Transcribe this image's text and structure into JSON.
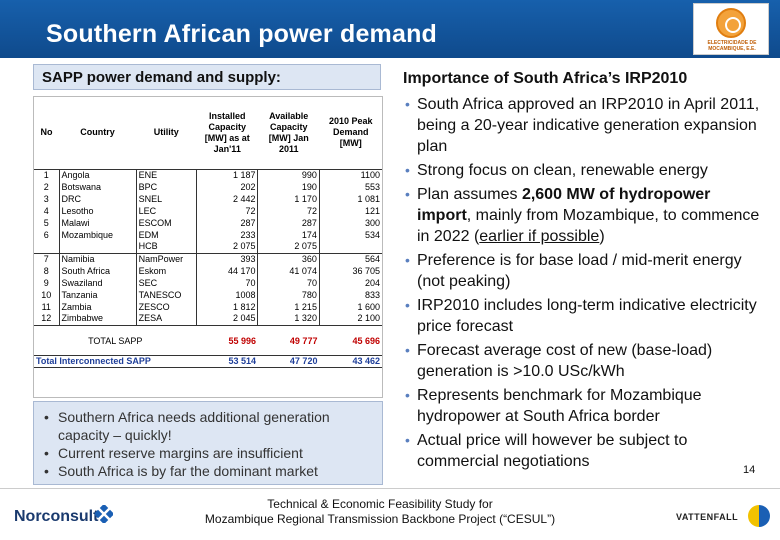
{
  "header": {
    "title": "Southern African power demand",
    "logo_text": "ELECTRICIDADE DE MOCAMBIQUE, E.E."
  },
  "left": {
    "heading": "SAPP power demand and supply:",
    "table": {
      "headers": [
        "No",
        "Country",
        "Utility",
        "Installed Capacity [MW] as at Jan'11",
        "Available Capacity [MW] Jan 2011",
        "2010 Peak Demand [MW]"
      ],
      "rows": [
        [
          "1",
          "Angola",
          "ENE",
          "1 187",
          "990",
          "1100"
        ],
        [
          "2",
          "Botswana",
          "BPC",
          "202",
          "190",
          "553"
        ],
        [
          "3",
          "DRC",
          "SNEL",
          "2 442",
          "1 170",
          "1 081"
        ],
        [
          "4",
          "Lesotho",
          "LEC",
          "72",
          "72",
          "121"
        ],
        [
          "5",
          "Malawi",
          "ESCOM",
          "287",
          "287",
          "300"
        ],
        [
          "6",
          "Mozambique",
          "EDM",
          "233",
          "174",
          "534"
        ],
        [
          "",
          "",
          "HCB",
          "2 075",
          "2 075",
          ""
        ],
        [
          "7",
          "Namibia",
          "NamPower",
          "393",
          "360",
          "564"
        ],
        [
          "8",
          "South Africa",
          "Eskom",
          "44 170",
          "41 074",
          "36 705"
        ],
        [
          "9",
          "Swaziland",
          "SEC",
          "70",
          "70",
          "204"
        ],
        [
          "10",
          "Tanzania",
          "TANESCO",
          "1008",
          "780",
          "833"
        ],
        [
          "11",
          "Zambia",
          "ZESCO",
          "1 812",
          "1 215",
          "1 600"
        ],
        [
          "12",
          "Zimbabwe",
          "ZESA",
          "2 045",
          "1 320",
          "2 100"
        ]
      ],
      "total_sapp": {
        "label": "TOTAL SAPP",
        "installed": "55 996",
        "available": "49 777",
        "peak": "45 696"
      },
      "total_interconnected": {
        "label": "Total Interconnected SAPP",
        "installed": "53 514",
        "available": "47 720",
        "peak": "43 462"
      }
    },
    "bullets": [
      "Southern Africa needs additional generation capacity – quickly!",
      "Current reserve margins are insufficient",
      "South Africa is by far the dominant market"
    ]
  },
  "right": {
    "heading": "Importance of South Africa’s IRP2010",
    "bullets": [
      {
        "pre": "South Africa approved an IRP2010 in April 2011, being a 20-year indicative generation expansion plan"
      },
      {
        "pre": "Strong focus on clean, renewable energy"
      },
      {
        "pre": "Plan assumes ",
        "bold": "2,600 MW of hydropower import",
        "post": ", mainly from Mozambique, to commence in 2022 (",
        "underline": "earlier if possible",
        "end": ")"
      },
      {
        "pre": "Preference is for base load / mid-merit energy (not peaking)"
      },
      {
        "pre": "IRP2010 includes long-term indicative electricity price forecast"
      },
      {
        "pre": "Forecast average cost of new (base-load) generation is >10.0 USc/kWh"
      },
      {
        "pre": "Represents benchmark for Mozambique hydropower at South Africa border"
      },
      {
        "pre": "Actual price will however be subject to commercial negotiations"
      }
    ]
  },
  "page_number": "14",
  "footer": {
    "line1": "Technical & Economic Feasibility Study for",
    "line2": "Mozambique Regional Transmission Backbone Project (“CESUL”)",
    "left_logo": "Norconsult",
    "right_logo": "VATTENFALL"
  }
}
